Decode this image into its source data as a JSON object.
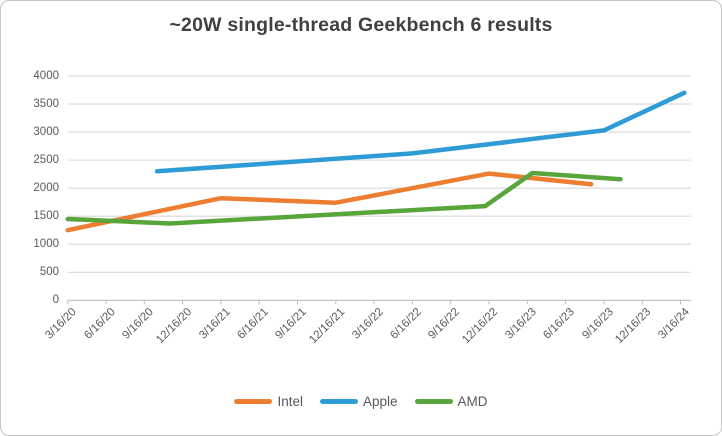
{
  "title": "~20W single-thread Geekbench 6 results",
  "colors": {
    "intel": "#ED7D31",
    "apple": "#2E9BD6",
    "amd": "#58A53C",
    "title_text": "#404040",
    "axis_text": "#595959",
    "gridline": "#D9D9D9",
    "axis_line": "#BFBFBF",
    "background": "#FFFFFF"
  },
  "y_axis": {
    "min": 0,
    "max": 4000,
    "step": 500,
    "tick_labels": [
      "0",
      "500",
      "1000",
      "1500",
      "2000",
      "2500",
      "3000",
      "3500",
      "4000"
    ]
  },
  "x_axis": {
    "tick_labels": [
      "3/16/20",
      "6/16/20",
      "9/16/20",
      "12/16/20",
      "3/16/21",
      "6/16/21",
      "9/16/21",
      "12/16/21",
      "3/16/22",
      "6/16/22",
      "9/16/22",
      "12/16/22",
      "3/16/23",
      "6/16/23",
      "9/16/23",
      "12/16/23",
      "3/16/24"
    ]
  },
  "legend": {
    "items": [
      {
        "label": "Intel",
        "color": "#ED7D31"
      },
      {
        "label": "Apple",
        "color": "#2E9BD6"
      },
      {
        "label": "AMD",
        "color": "#58A53C"
      }
    ]
  },
  "chart_data": {
    "type": "line",
    "title": "~20W single-thread Geekbench 6 results",
    "xlabel": "",
    "ylabel": "",
    "ylim": [
      0,
      4000
    ],
    "grid": true,
    "legend_position": "bottom",
    "x_tick_labels": [
      "3/16/20",
      "6/16/20",
      "9/16/20",
      "12/16/20",
      "3/16/21",
      "6/16/21",
      "9/16/21",
      "12/16/21",
      "3/16/22",
      "6/16/22",
      "9/16/22",
      "12/16/22",
      "3/16/23",
      "6/16/23",
      "9/16/23",
      "12/16/23",
      "3/16/24"
    ],
    "t_unit": "months since 3/16/20 (date-scaled x axis)",
    "series": [
      {
        "name": "Intel",
        "color": "#ED7D31",
        "points": [
          {
            "t": 0,
            "date": "3/16/20",
            "v": 1250
          },
          {
            "t": 12,
            "date": "3/16/21",
            "v": 1820
          },
          {
            "t": 21,
            "date": "12/16/21",
            "v": 1740
          },
          {
            "t": 33,
            "date": "12/16/22",
            "v": 2260
          },
          {
            "t": 41,
            "date": "8/16/23",
            "v": 2070
          }
        ]
      },
      {
        "name": "Apple",
        "color": "#2E9BD6",
        "points": [
          {
            "t": 7,
            "date": "10/16/20",
            "v": 2300
          },
          {
            "t": 27,
            "date": "6/16/22",
            "v": 2620
          },
          {
            "t": 42,
            "date": "9/16/23",
            "v": 3030
          },
          {
            "t": 48.3,
            "date": "3/16/24",
            "v": 3700
          }
        ]
      },
      {
        "name": "AMD",
        "color": "#58A53C",
        "points": [
          {
            "t": 0,
            "date": "3/16/20",
            "v": 1450
          },
          {
            "t": 8,
            "date": "11/16/20",
            "v": 1370
          },
          {
            "t": 32.7,
            "date": "12/16/22",
            "v": 1680
          },
          {
            "t": 36.4,
            "date": "4/16/23",
            "v": 2270
          },
          {
            "t": 43.3,
            "date": "10/16/23",
            "v": 2160
          }
        ]
      }
    ]
  }
}
